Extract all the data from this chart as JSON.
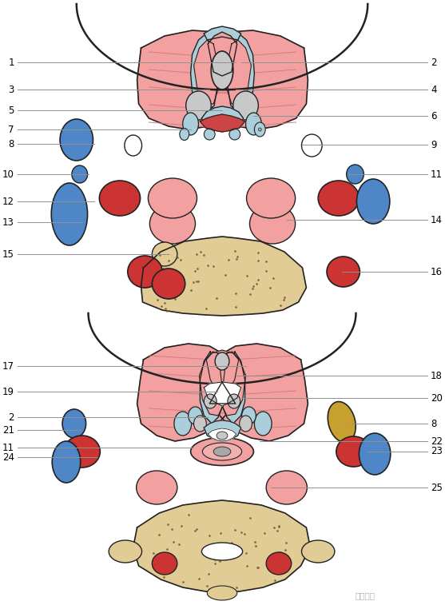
{
  "bg_color": "#ffffff",
  "colors": {
    "pink": "#F2A0A0",
    "pink_muscle": "#F0B0B0",
    "light_blue": "#AACFDB",
    "light_blue2": "#C5E0EA",
    "blue": "#4E86C8",
    "dark_red": "#CC3333",
    "red_dark": "#C03030",
    "gray": "#A8A8A8",
    "light_gray": "#C8C8C8",
    "beige": "#E2CC96",
    "outline": "#222222",
    "gold": "#C8A030",
    "white": "#FFFFFF",
    "line_color": "#909090"
  },
  "watermark": "熊猫放射"
}
